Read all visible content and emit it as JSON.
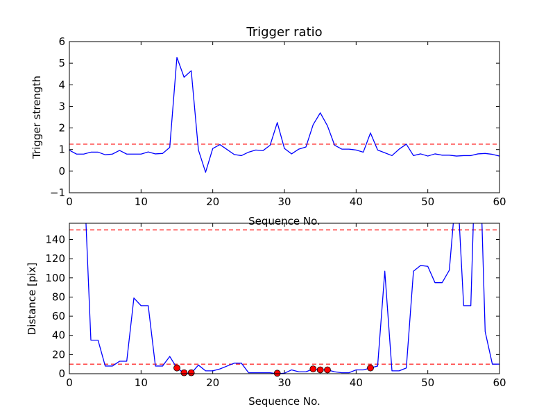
{
  "chart_data": [
    {
      "type": "line",
      "title": "Trigger ratio",
      "xlabel": "Sequence No.",
      "ylabel": "Trigger strength",
      "xlim": [
        0,
        60
      ],
      "ylim": [
        -1,
        6
      ],
      "xticks": [
        0,
        10,
        20,
        30,
        40,
        50,
        60
      ],
      "yticks": [
        -1,
        0,
        1,
        2,
        3,
        4,
        5,
        6
      ],
      "grid": false,
      "series": [
        {
          "color": "#0000ff",
          "x": [
            0,
            1,
            2,
            3,
            4,
            5,
            6,
            7,
            8,
            9,
            10,
            11,
            12,
            13,
            14,
            15,
            16,
            17,
            18,
            19,
            20,
            21,
            22,
            23,
            24,
            25,
            26,
            27,
            28,
            29,
            30,
            31,
            32,
            33,
            34,
            35,
            36,
            37,
            38,
            39,
            40,
            41,
            42,
            43,
            44,
            45,
            46,
            47,
            48,
            49,
            50,
            51,
            52,
            53,
            54,
            55,
            56,
            57,
            58,
            59,
            60
          ],
          "y": [
            0.97,
            0.79,
            0.79,
            0.88,
            0.88,
            0.76,
            0.79,
            0.96,
            0.79,
            0.79,
            0.79,
            0.89,
            0.8,
            0.82,
            1.1,
            5.27,
            4.35,
            4.65,
            0.98,
            -0.05,
            1.05,
            1.23,
            1.0,
            0.77,
            0.72,
            0.88,
            0.98,
            0.95,
            1.2,
            2.25,
            1.05,
            0.8,
            1.02,
            1.12,
            2.15,
            2.7,
            2.1,
            1.2,
            1.02,
            1.02,
            0.98,
            0.88,
            1.77,
            0.98,
            0.85,
            0.72,
            1.02,
            1.25,
            0.72,
            0.8,
            0.7,
            0.8,
            0.74,
            0.74,
            0.7,
            0.72,
            0.72,
            0.8,
            0.82,
            0.78,
            0.7
          ]
        }
      ],
      "reference_lines": [
        {
          "y": 1.25,
          "color": "#ff0000",
          "style": "dashed"
        }
      ]
    },
    {
      "type": "line",
      "title": "",
      "xlabel": "Sequence No.",
      "ylabel": "Distance [pix]",
      "xlim": [
        0,
        60
      ],
      "ylim": [
        0,
        157
      ],
      "xticks": [
        0,
        10,
        20,
        30,
        40,
        50,
        60
      ],
      "yticks": [
        0,
        20,
        40,
        60,
        80,
        100,
        120,
        140
      ],
      "grid": false,
      "series": [
        {
          "color": "#0000ff",
          "x": [
            2.1,
            2.3,
            3,
            4,
            5,
            6,
            7,
            8,
            9,
            10,
            11,
            12,
            13,
            14,
            15,
            16,
            17,
            18,
            19,
            20,
            21,
            22,
            23,
            24,
            25,
            26,
            27,
            28,
            29,
            30,
            31,
            32,
            33,
            34,
            35,
            36,
            37,
            38,
            39,
            40,
            41,
            42,
            43,
            44,
            45,
            46,
            47,
            48,
            49,
            50,
            51,
            52,
            53,
            53.7,
            54.3,
            55,
            56,
            56.4,
            57.5,
            58,
            59,
            60
          ],
          "y": [
            170,
            160,
            35,
            35,
            8,
            8,
            13,
            13,
            79,
            71,
            71,
            8,
            8,
            18,
            6,
            0.5,
            0.5,
            9,
            3,
            3,
            5,
            8,
            11,
            11,
            1,
            1,
            1,
            1,
            0,
            0.5,
            4,
            2,
            2,
            5,
            4,
            4,
            2,
            1,
            1,
            4,
            4,
            6,
            8,
            107,
            3,
            3,
            6,
            107,
            113,
            112,
            95,
            95,
            108,
            170,
            170,
            71,
            71,
            170,
            170,
            44,
            10,
            10
          ]
        }
      ],
      "markers": {
        "color": "#ff0000",
        "x": [
          15,
          16,
          17,
          29,
          34,
          35,
          36,
          42
        ],
        "y": [
          6,
          1,
          1,
          0.5,
          5,
          4,
          4,
          6
        ]
      },
      "reference_lines": [
        {
          "y": 150,
          "color": "#ff0000",
          "style": "dashed"
        },
        {
          "y": 10,
          "color": "#ff0000",
          "style": "dashed"
        }
      ]
    }
  ]
}
